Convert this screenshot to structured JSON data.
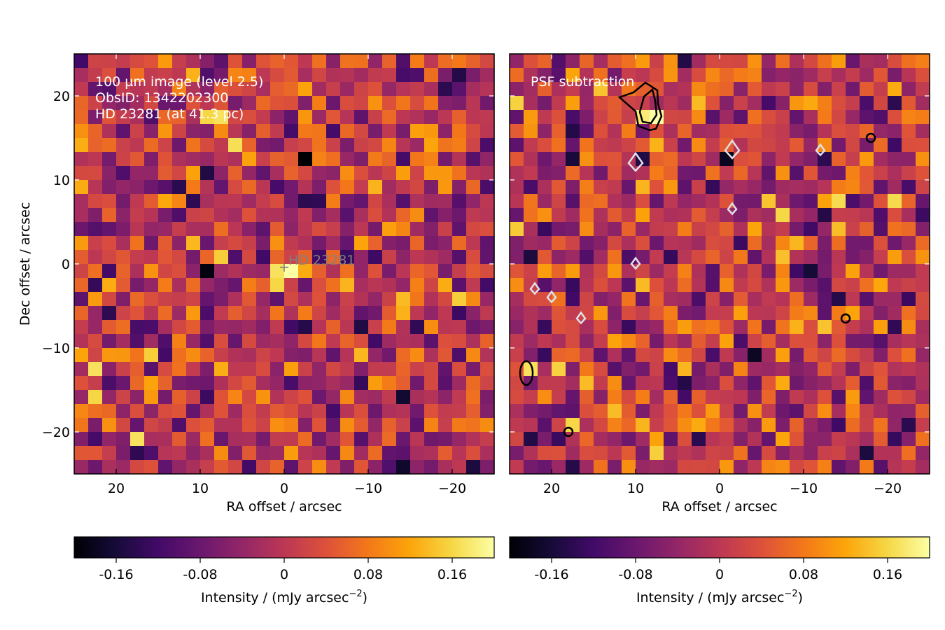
{
  "chart_data": [
    {
      "type": "heatmap",
      "panel": "left",
      "annotations": [
        "100 µm image (level 2.5)",
        "ObsID: 1342202300",
        "HD 23281 (at 41.3 pc)"
      ],
      "source_label": "HD  23281",
      "source_position": [
        0,
        0
      ],
      "xlabel": "RA offset / arcsec",
      "ylabel": "Dec offset / arcsec",
      "xlim": [
        25,
        -25
      ],
      "ylim": [
        -25,
        25
      ],
      "xticks": [
        20,
        10,
        0,
        -10,
        -20
      ],
      "yticks": [
        -20,
        -10,
        0,
        10,
        20
      ],
      "xtick_labels": [
        "20",
        "10",
        "0",
        "−10",
        "−20"
      ],
      "ytick_labels": [
        "−20",
        "−10",
        "0",
        "10",
        "20"
      ],
      "grid_cells": [
        30,
        30
      ],
      "colormap": "inferno",
      "color_range": [
        -0.2,
        0.2
      ],
      "bright_pixels": [
        {
          "x": 0,
          "y": -1,
          "value": 0.2
        },
        {
          "x": 1,
          "y": 0,
          "value": 0.17
        },
        {
          "x": 1,
          "y": -3,
          "value": 0.16
        },
        {
          "x": 8,
          "y": 17,
          "value": 0.17
        },
        {
          "x": 9,
          "y": 18,
          "value": 0.16
        },
        {
          "x": 22,
          "y": -12,
          "value": 0.17
        },
        {
          "x": 18,
          "y": -20,
          "value": 0.17
        },
        {
          "x": -14,
          "y": -6,
          "value": 0.13
        },
        {
          "x": -18,
          "y": 15,
          "value": 0.12
        }
      ],
      "dark_pixels": [
        {
          "x": -2,
          "y": 13,
          "value": -0.2
        },
        {
          "x": 10,
          "y": 0,
          "value": -0.19
        },
        {
          "x": 10,
          "y": 11,
          "value": -0.15
        },
        {
          "x": -2,
          "y": 7,
          "value": -0.14
        },
        {
          "x": -19,
          "y": 21,
          "value": -0.14
        }
      ]
    },
    {
      "type": "heatmap",
      "panel": "right",
      "annotations": [
        "PSF subtraction"
      ],
      "xlabel": "RA offset / arcsec",
      "xlim": [
        25,
        -25
      ],
      "ylim": [
        -25,
        25
      ],
      "xticks": [
        20,
        10,
        0,
        -10,
        -20
      ],
      "xtick_labels": [
        "20",
        "10",
        "0",
        "−10",
        "−20"
      ],
      "grid_cells": [
        30,
        30
      ],
      "colormap": "inferno",
      "color_range": [
        -0.2,
        0.2
      ],
      "contours": {
        "positive_color": "#000000",
        "negative_color": "#e0e0e8",
        "positive_regions": [
          {
            "x": 9,
            "y": 19
          },
          {
            "x": 23,
            "y": -13
          },
          {
            "x": 18,
            "y": -20
          },
          {
            "x": -18,
            "y": 15
          },
          {
            "x": -15,
            "y": -6.5
          }
        ],
        "negative_regions": [
          {
            "x": -1.5,
            "y": 13.5
          },
          {
            "x": 10,
            "y": 12
          },
          {
            "x": -1.5,
            "y": 6.5
          },
          {
            "x": 10,
            "y": 0
          },
          {
            "x": 22,
            "y": -3
          },
          {
            "x": -12,
            "y": 13.5
          },
          {
            "x": 16.5,
            "y": -6.5
          },
          {
            "x": 20,
            "y": -4
          }
        ]
      },
      "bright_pixels": [
        {
          "x": 9,
          "y": 18,
          "value": 0.18
        },
        {
          "x": 8,
          "y": 17,
          "value": 0.2
        },
        {
          "x": 23,
          "y": -13,
          "value": 0.17
        },
        {
          "x": 18,
          "y": -19,
          "value": 0.16
        },
        {
          "x": -15,
          "y": -6,
          "value": 0.12
        },
        {
          "x": -8,
          "y": -21,
          "value": 0.12
        }
      ],
      "dark_pixels": [
        {
          "x": -1,
          "y": 13,
          "value": -0.18
        },
        {
          "x": 10,
          "y": 12,
          "value": -0.15
        },
        {
          "x": -12,
          "y": 13,
          "value": -0.14
        },
        {
          "x": -20,
          "y": 20,
          "value": -0.14
        }
      ]
    }
  ],
  "colorbars": [
    {
      "label": "Intensity / (mJy arcsec⁻²)",
      "label_main": "Intensity / (mJy arcsec",
      "label_sup": "−2",
      "label_close": ")",
      "range": [
        -0.2,
        0.2
      ],
      "ticks": [
        -0.16,
        -0.08,
        0,
        0.08,
        0.16
      ],
      "tick_labels": [
        "-0.16",
        "-0.08",
        "0",
        "0.08",
        "0.16"
      ]
    },
    {
      "label": "Intensity / (mJy arcsec⁻²)",
      "label_main": "Intensity / (mJy arcsec",
      "label_sup": "−2",
      "label_close": ")",
      "range": [
        -0.2,
        0.2
      ],
      "ticks": [
        -0.16,
        -0.08,
        0,
        0.08,
        0.16
      ],
      "tick_labels": [
        "-0.16",
        "-0.08",
        "0",
        "0.08",
        "0.16"
      ]
    }
  ]
}
